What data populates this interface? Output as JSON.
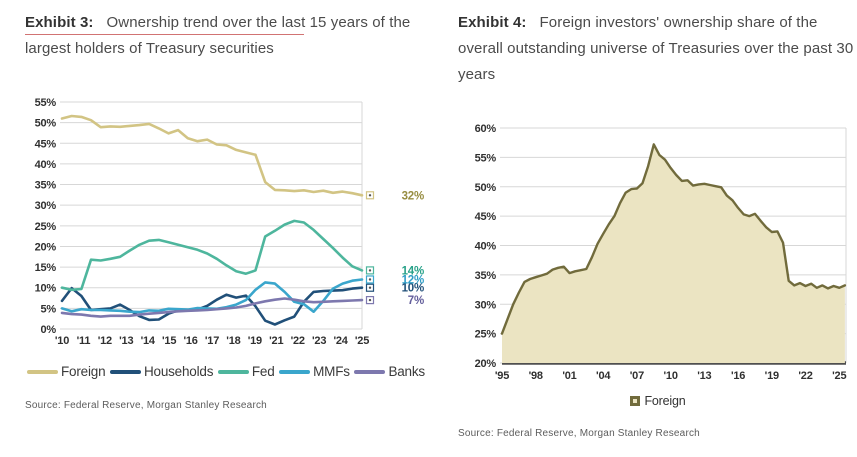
{
  "header": {
    "exhibit3_label": "Exhibit 3:",
    "exhibit3_title": "Ownership trend over the last 15 years of the largest holders of Treasury securities",
    "exhibit4_label": "Exhibit 4:",
    "exhibit4_title": "Foreign investors' ownership share of the overall outstanding universe of Treasuries over the past 30 years"
  },
  "footer": {
    "source_left": "Source: Federal Reserve, Morgan Stanley Research",
    "source_right": "Source: Federal Reserve, Morgan Stanley Research"
  },
  "colors": {
    "grid": "#d7d7d7",
    "tick_text": "#303030",
    "axis_dark": "#4f4f4f",
    "title_underline": "#c65050"
  },
  "chart_data": [
    {
      "type": "line",
      "title": "Exhibit 3: Ownership trend over the last 15 years of the largest holders of Treasury securities",
      "ylim": [
        0,
        55
      ],
      "ytick_step": 5,
      "ytick_suffix": "%",
      "xlim": [
        2010,
        2025.5
      ],
      "xtick_labels": [
        "'10",
        "'11",
        "'12",
        "'13",
        "'14",
        "'15",
        "'16",
        "'17",
        "'18",
        "'19",
        "'21",
        "'22",
        "'23",
        "'24",
        "'25"
      ],
      "grid": true,
      "legend_position": "bottom",
      "x_start": 2010.0,
      "x_step": 0.5,
      "series": [
        {
          "name": "Foreign",
          "color": "#d2c484",
          "label_color": "#978d41",
          "end_label": "32%",
          "values": [
            51.0,
            51.6,
            51.4,
            50.6,
            48.9,
            49.1,
            49.0,
            49.2,
            49.4,
            49.7,
            48.6,
            47.4,
            48.2,
            46.2,
            45.5,
            45.9,
            44.7,
            44.5,
            43.4,
            42.8,
            42.2,
            35.6,
            33.7,
            33.6,
            33.4,
            33.6,
            33.2,
            33.5,
            33.0,
            33.3,
            32.9,
            32.4
          ]
        },
        {
          "name": "Households",
          "color": "#215079",
          "label_color": "#215079",
          "end_label": "10%",
          "values": [
            6.8,
            9.9,
            8.0,
            4.6,
            4.8,
            5.0,
            5.9,
            4.6,
            3.1,
            2.2,
            2.3,
            3.7,
            4.5,
            4.6,
            4.7,
            5.6,
            7.1,
            8.3,
            7.6,
            8.1,
            5.5,
            2.0,
            1.1,
            2.1,
            3.0,
            6.6,
            9.0,
            9.2,
            9.3,
            9.4,
            9.8,
            10.0
          ]
        },
        {
          "name": "Fed",
          "color": "#4eb69d",
          "label_color": "#27a188",
          "end_label": "14%",
          "values": [
            10.0,
            9.5,
            9.7,
            16.8,
            16.6,
            17.0,
            17.5,
            19.0,
            20.4,
            21.4,
            21.6,
            21.0,
            20.4,
            19.8,
            19.2,
            18.3,
            17.0,
            15.4,
            14.0,
            13.4,
            14.2,
            22.4,
            23.8,
            25.3,
            26.2,
            25.8,
            24.0,
            21.8,
            19.6,
            17.3,
            15.2,
            14.2
          ]
        },
        {
          "name": "MMFs",
          "color": "#3aa6cc",
          "label_color": "#2e9dc6",
          "end_label": "12%",
          "values": [
            5.0,
            4.3,
            4.8,
            4.6,
            4.6,
            4.5,
            4.4,
            4.2,
            4.1,
            4.5,
            4.4,
            4.9,
            4.8,
            4.7,
            5.1,
            5.0,
            4.9,
            5.3,
            5.9,
            7.0,
            9.5,
            11.3,
            11.0,
            9.0,
            6.6,
            6.0,
            4.2,
            6.8,
            9.8,
            11.0,
            11.7,
            12.0
          ]
        },
        {
          "name": "Banks",
          "color": "#7d78ae",
          "label_color": "#635e9b",
          "end_label": "7%",
          "values": [
            3.9,
            3.6,
            3.5,
            3.2,
            3.0,
            3.2,
            3.2,
            3.2,
            3.5,
            3.7,
            3.9,
            4.1,
            4.3,
            4.4,
            4.5,
            4.6,
            4.8,
            5.0,
            5.2,
            5.6,
            6.2,
            6.7,
            7.1,
            7.4,
            7.1,
            6.7,
            6.5,
            6.6,
            6.7,
            6.8,
            6.9,
            7.0
          ]
        }
      ]
    },
    {
      "type": "area",
      "title": "Exhibit 4: Foreign investors' ownership share of the overall outstanding universe of Treasuries over the past 30 years",
      "ylim": [
        20,
        60
      ],
      "ytick_step": 5,
      "ytick_suffix": "%",
      "xlim": [
        1995,
        2025.6
      ],
      "xticks": [
        {
          "label": "'95",
          "year": 1995
        },
        {
          "label": "'98",
          "year": 1998
        },
        {
          "label": "'01",
          "year": 2001
        },
        {
          "label": "'04",
          "year": 2004
        },
        {
          "label": "'07",
          "year": 2007
        },
        {
          "label": "'10",
          "year": 2010
        },
        {
          "label": "'13",
          "year": 2013
        },
        {
          "label": "'16",
          "year": 2016
        },
        {
          "label": "'19",
          "year": 2019
        },
        {
          "label": "'22",
          "year": 2022
        },
        {
          "label": "'25",
          "year": 2025
        }
      ],
      "grid": true,
      "baseline": true,
      "legend_position": "bottom",
      "x_start": 1995.0,
      "x_step": 0.5,
      "series": [
        {
          "name": "Foreign",
          "color": "#716b3c",
          "fill": "#ebe4c2",
          "values": [
            25.0,
            27.5,
            30.0,
            32.0,
            33.8,
            34.3,
            34.6,
            34.9,
            35.2,
            35.9,
            36.2,
            36.4,
            35.3,
            35.6,
            35.8,
            36.0,
            38.0,
            40.3,
            42.0,
            43.6,
            45.0,
            47.2,
            49.0,
            49.6,
            49.7,
            50.6,
            53.5,
            57.2,
            55.4,
            54.6,
            53.2,
            52.0,
            51.0,
            51.1,
            50.2,
            50.4,
            50.5,
            50.3,
            50.1,
            49.9,
            48.5,
            47.7,
            46.4,
            45.3,
            45.0,
            45.4,
            44.2,
            43.1,
            42.3,
            42.4,
            40.5,
            34.0,
            33.2,
            33.6,
            33.1,
            33.5,
            32.8,
            33.2,
            32.7,
            33.1,
            32.8,
            33.2
          ]
        }
      ]
    }
  ]
}
